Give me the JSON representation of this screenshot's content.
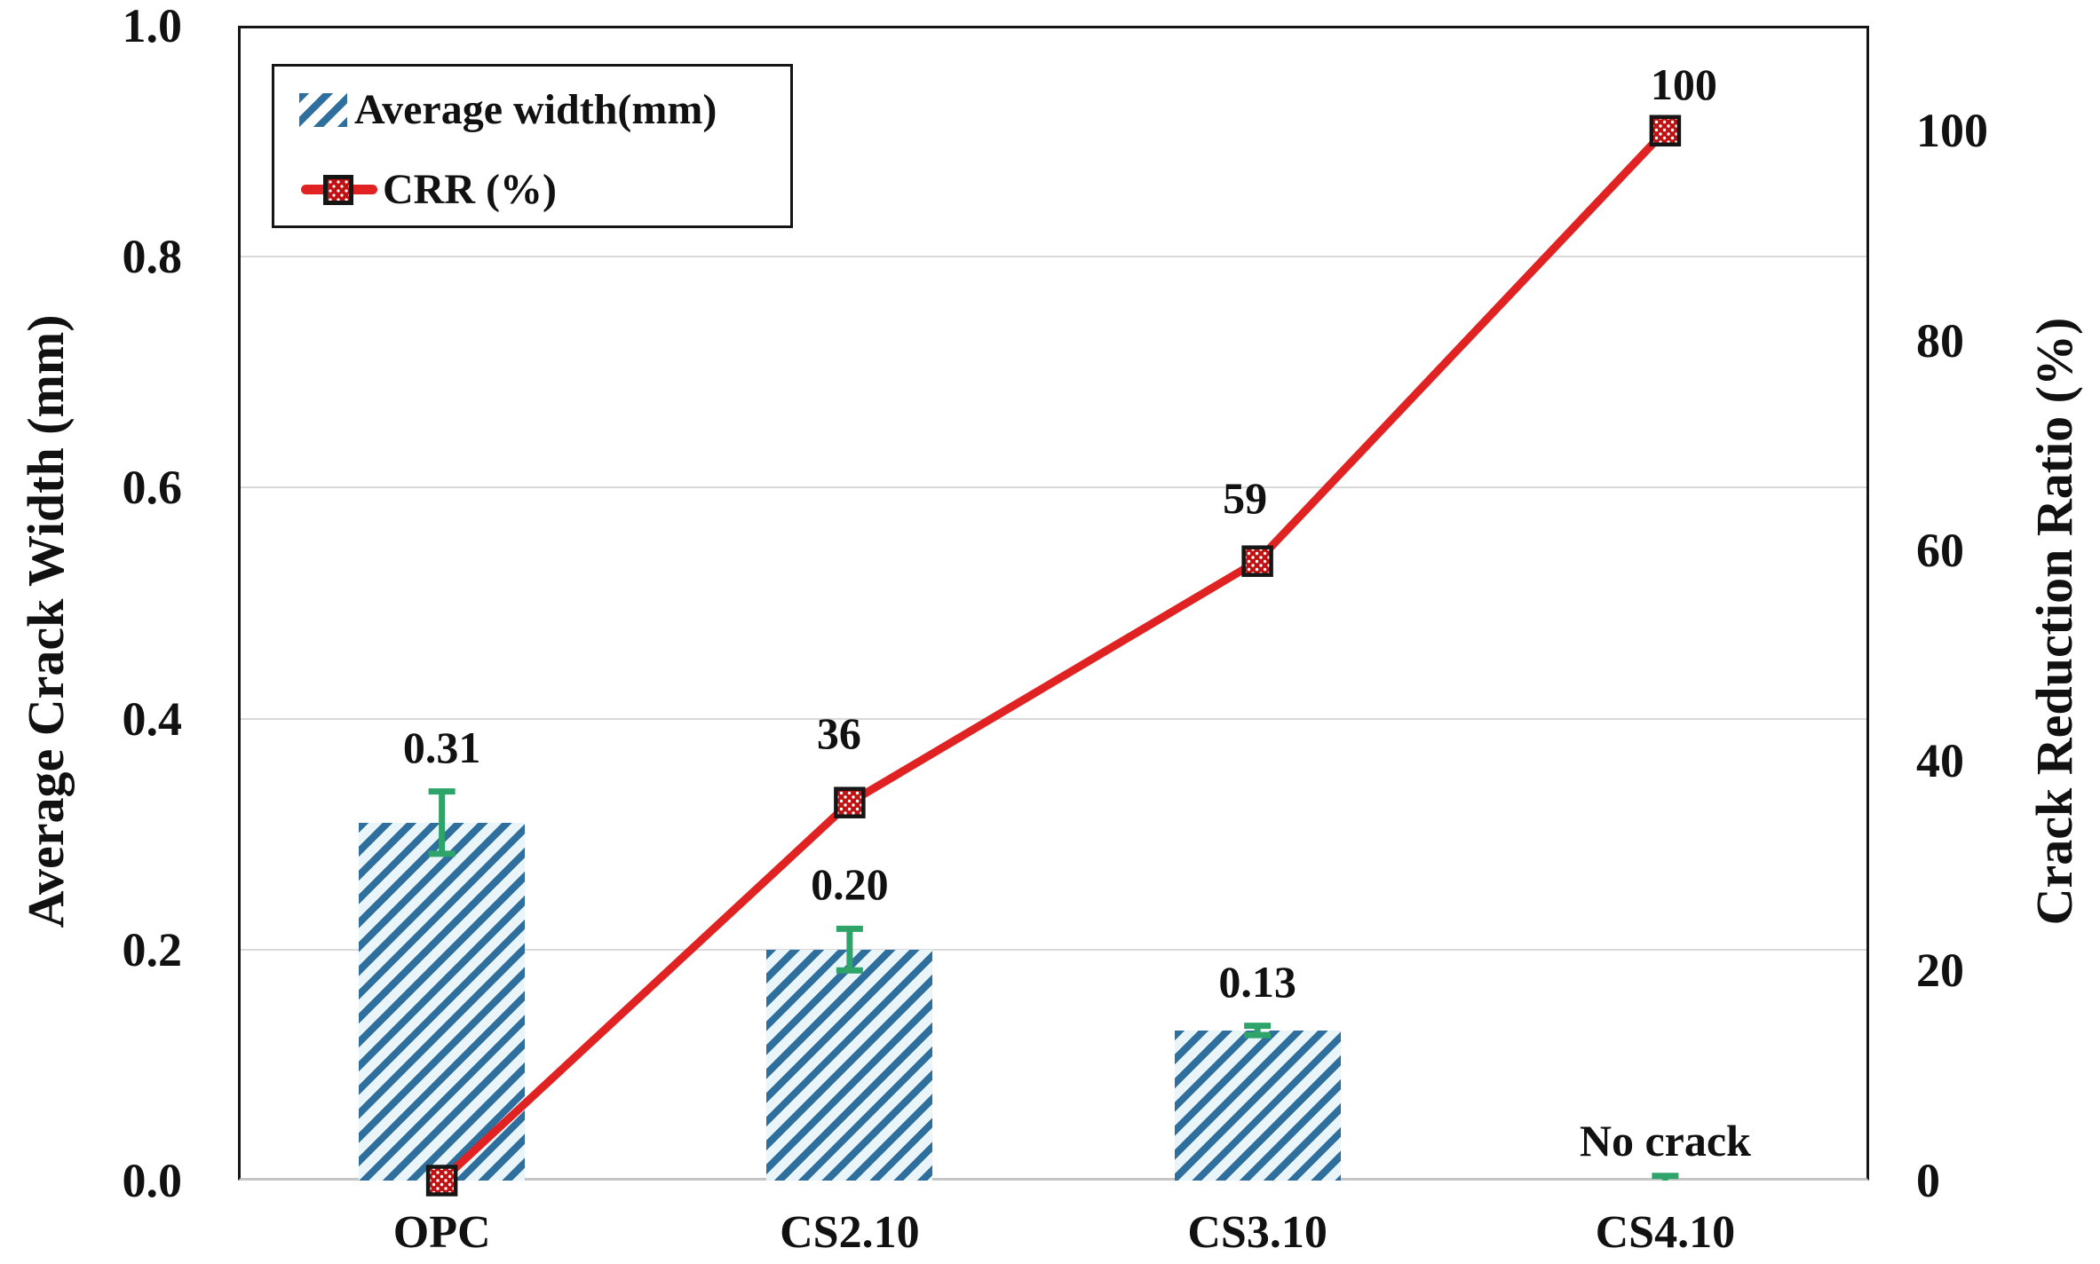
{
  "chart_data": {
    "type": "combo",
    "title": "",
    "categories": [
      "OPC",
      "CS2.10",
      "CS3.10",
      "CS4.10"
    ],
    "series": [
      {
        "name": "Average width(mm)",
        "type": "bar",
        "axis": "left",
        "values": [
          0.31,
          0.2,
          0.13,
          null
        ],
        "errors": [
          0.027,
          0.018,
          0.004,
          0.004
        ],
        "labels": [
          "0.31",
          "0.20",
          "0.13",
          "No crack"
        ]
      },
      {
        "name": "CRR (%)",
        "type": "line",
        "axis": "right",
        "values": [
          0,
          36,
          59,
          100
        ],
        "labels": [
          "",
          "36",
          "59",
          "100"
        ]
      }
    ],
    "left_axis": {
      "title": "Average Crack Width (mm)",
      "ticks": [
        "1.0",
        "0.8",
        "0.6",
        "0.4",
        "0.2",
        "0.0"
      ],
      "tick_values": [
        1.0,
        0.8,
        0.6,
        0.4,
        0.2,
        0.0
      ],
      "range": [
        0,
        1.0
      ]
    },
    "right_axis": {
      "title": "Crack Reduction Ratio (%)",
      "ticks": [
        "100",
        "80",
        "60",
        "40",
        "20",
        "0"
      ],
      "tick_values": [
        100,
        80,
        60,
        40,
        20,
        0
      ],
      "range": [
        0,
        110
      ]
    },
    "x_axis": {
      "labels": [
        "OPC",
        "CS2.10",
        "CS3.10",
        "CS4.10"
      ]
    },
    "legend": {
      "position": "top-left",
      "entries": [
        "Average width(mm)",
        "CRR (%)"
      ]
    },
    "grid": true,
    "gridline_values": [
      0.2,
      0.4,
      0.6,
      0.8
    ],
    "colors": {
      "bar_hatch": "#2e6f9e",
      "bar_background": "#e9f5f9",
      "line": "#e02222",
      "marker_fill": "#c01212",
      "marker_border": "#161616",
      "error_bar": "#2fa46a",
      "gridline": "#d9d9d9",
      "axis_frame": "#161616",
      "text": "#111111"
    }
  }
}
